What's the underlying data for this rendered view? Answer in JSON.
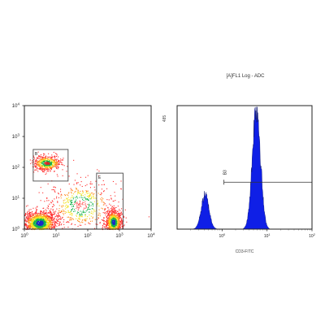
{
  "chart_data": [
    {
      "type": "scatter",
      "subtype": "density-dot-plot",
      "x_scale": "log",
      "y_scale": "log",
      "xlim": [
        1,
        10000
      ],
      "ylim": [
        1,
        10000
      ],
      "x_ticks": [
        {
          "base": "10",
          "exp": "0"
        },
        {
          "base": "10",
          "exp": "1"
        },
        {
          "base": "10",
          "exp": "2"
        },
        {
          "base": "10",
          "exp": "3"
        },
        {
          "base": "10",
          "exp": "4"
        }
      ],
      "y_ticks": [
        {
          "base": "10",
          "exp": "0"
        },
        {
          "base": "10",
          "exp": "1"
        },
        {
          "base": "10",
          "exp": "2"
        },
        {
          "base": "10",
          "exp": "3"
        },
        {
          "base": "10",
          "exp": "4"
        }
      ],
      "populations": [
        {
          "x_center": 3,
          "y_center": 1.6,
          "x_spread": 0.26,
          "y_spread": 0.2,
          "weight": 0.42,
          "peak_color": "#1a28c8"
        },
        {
          "x_center": 640,
          "y_center": 1.7,
          "x_spread": 0.13,
          "y_spread": 0.2,
          "weight": 0.26,
          "peak_color": "#1a28c8"
        },
        {
          "x_center": 5,
          "y_center": 140,
          "x_spread": 0.22,
          "y_spread": 0.12,
          "weight": 0.16,
          "peak_color": "#e02020"
        },
        {
          "x_center": 60,
          "y_center": 6,
          "x_spread": 0.5,
          "y_spread": 0.4,
          "weight": 0.16,
          "peak_color": "#ff5a5a"
        }
      ],
      "gates": [
        {
          "label": "B",
          "x_range": [
            1.9,
            24
          ],
          "y_range": [
            36,
            380
          ]
        },
        {
          "label": "E",
          "x_range": [
            190,
            1300
          ],
          "y_range": [
            1,
            65
          ]
        }
      ],
      "dot_color": "#ff2a2a",
      "dot_count": 3600,
      "gate_color": "#4a4a4a"
    },
    {
      "type": "area",
      "subtype": "histogram",
      "title": "[A]FL1 Log - ADC",
      "xlabel": "CD3-FITC",
      "ylabel": "485",
      "x_scale": "log",
      "xlim": [
        0.1,
        100
      ],
      "x_ticks": [
        {
          "base": "10",
          "exp": "0"
        },
        {
          "base": "10",
          "exp": "1"
        },
        {
          "base": "10",
          "exp": "2"
        }
      ],
      "peaks": [
        {
          "x_center": 0.42,
          "width": 0.085,
          "height": 0.28
        },
        {
          "x_center": 5.8,
          "width": 0.09,
          "height": 1.0
        }
      ],
      "fill_color": "#0f1fe6",
      "marker": {
        "label": "B3",
        "x_range": [
          1.1,
          100
        ],
        "level": 0.38
      }
    }
  ]
}
